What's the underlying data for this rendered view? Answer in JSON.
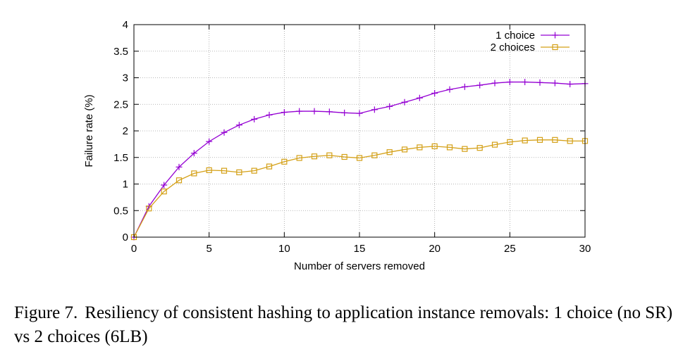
{
  "chart_data": {
    "type": "line",
    "xlabel": "Number of servers removed",
    "ylabel": "Failure rate (%)",
    "xlim": [
      0,
      30
    ],
    "ylim": [
      0,
      4
    ],
    "xticks": [
      "0",
      "5",
      "10",
      "15",
      "20",
      "25",
      "30"
    ],
    "yticks": [
      "0",
      "0.5",
      "1",
      "1.5",
      "2",
      "2.5",
      "3",
      "3.5",
      "4"
    ],
    "grid": true,
    "legend_position": "top-right",
    "x": [
      0,
      1,
      2,
      3,
      4,
      5,
      6,
      7,
      8,
      9,
      10,
      11,
      12,
      13,
      14,
      15,
      16,
      17,
      18,
      19,
      20,
      21,
      22,
      23,
      24,
      25,
      26,
      27,
      28,
      29,
      30
    ],
    "series": [
      {
        "name": "1 choice",
        "color": "#9400d3",
        "marker": "plus",
        "values": [
          0,
          0.58,
          0.98,
          1.32,
          1.58,
          1.8,
          1.97,
          2.11,
          2.22,
          2.3,
          2.35,
          2.37,
          2.37,
          2.36,
          2.34,
          2.33,
          2.4,
          2.46,
          2.54,
          2.62,
          2.71,
          2.78,
          2.83,
          2.86,
          2.9,
          2.92,
          2.92,
          2.91,
          2.9,
          2.88,
          2.89
        ]
      },
      {
        "name": "2 choices",
        "color": "#d4a017",
        "marker": "square",
        "values": [
          0,
          0.54,
          0.86,
          1.07,
          1.2,
          1.26,
          1.25,
          1.22,
          1.25,
          1.33,
          1.42,
          1.49,
          1.52,
          1.54,
          1.51,
          1.49,
          1.54,
          1.6,
          1.65,
          1.69,
          1.71,
          1.69,
          1.66,
          1.68,
          1.74,
          1.79,
          1.82,
          1.83,
          1.83,
          1.81,
          1.81
        ]
      }
    ]
  },
  "caption": {
    "label": "Figure 7.",
    "text": "Resiliency of consistent hashing to application instance removals: 1 choice (no SR) vs 2 choices (6LB)"
  }
}
